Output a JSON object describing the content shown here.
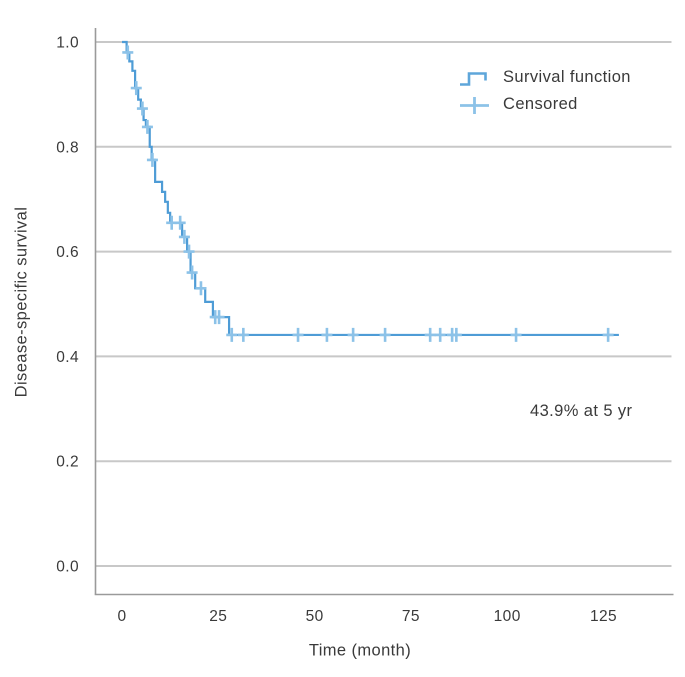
{
  "colors": {
    "line": "#4e9cd6",
    "censor": "#8cc2e8",
    "grid": "#c8c8c8",
    "spine": "#9a9a9a",
    "text": "#3a3a3a"
  },
  "chart_data": {
    "type": "line",
    "subtype": "kaplan-meier-step-function",
    "title": "",
    "xlabel": "Time (month)",
    "ylabel": "Disease-specific survival",
    "x_ticks": {
      "labels": [
        "0",
        "25",
        "50",
        "75",
        "100",
        "125"
      ],
      "values": [
        0,
        25,
        50,
        75,
        100,
        125
      ]
    },
    "y_ticks": {
      "labels": [
        "0.0",
        "0.2",
        "0.4",
        "0.6",
        "0.8",
        "1.0"
      ],
      "values": [
        0.0,
        0.2,
        0.4,
        0.6,
        0.8,
        1.0
      ]
    },
    "xlim": [
      -7,
      142.5
    ],
    "ylim": [
      -0.055,
      1.027
    ],
    "grid": "horizontal-only",
    "legend_position": "top-right-inside",
    "annotation": {
      "text": "43.9% at 5 yr",
      "x": 106,
      "y": 0.29
    },
    "series": [
      {
        "name": "Survival function",
        "type": "step",
        "points": [
          [
            0,
            1.0
          ],
          [
            1.2,
            0.98
          ],
          [
            1.9,
            0.963
          ],
          [
            2.7,
            0.945
          ],
          [
            3.4,
            0.912
          ],
          [
            4.2,
            0.89
          ],
          [
            4.9,
            0.873
          ],
          [
            5.6,
            0.851
          ],
          [
            6.2,
            0.838
          ],
          [
            7.2,
            0.8
          ],
          [
            7.7,
            0.775
          ],
          [
            8.6,
            0.733
          ],
          [
            10.4,
            0.714
          ],
          [
            11.2,
            0.695
          ],
          [
            11.9,
            0.674
          ],
          [
            12.5,
            0.655
          ],
          [
            15.6,
            0.628
          ],
          [
            16.9,
            0.6
          ],
          [
            17.8,
            0.56
          ],
          [
            19.0,
            0.53
          ],
          [
            21.6,
            0.504
          ],
          [
            23.6,
            0.475
          ],
          [
            27.8,
            0.441
          ]
        ],
        "end_time": 129,
        "final_value": 0.441
      },
      {
        "name": "Censored",
        "type": "plus-markers",
        "points": [
          [
            1.5,
            0.98
          ],
          [
            3.7,
            0.912
          ],
          [
            5.3,
            0.873
          ],
          [
            6.6,
            0.838
          ],
          [
            7.9,
            0.775
          ],
          [
            12.9,
            0.655
          ],
          [
            15.1,
            0.655
          ],
          [
            16.2,
            0.628
          ],
          [
            17.4,
            0.6
          ],
          [
            18.2,
            0.56
          ],
          [
            20.5,
            0.53
          ],
          [
            24.2,
            0.475
          ],
          [
            25.2,
            0.475
          ],
          [
            28.5,
            0.441
          ],
          [
            31.5,
            0.441
          ],
          [
            45.7,
            0.441
          ],
          [
            53.2,
            0.441
          ],
          [
            60.0,
            0.441
          ],
          [
            68.3,
            0.441
          ],
          [
            80.0,
            0.441
          ],
          [
            82.6,
            0.441
          ],
          [
            85.7,
            0.441
          ],
          [
            86.8,
            0.441
          ],
          [
            102.3,
            0.441
          ],
          [
            126.2,
            0.441
          ]
        ]
      }
    ]
  }
}
